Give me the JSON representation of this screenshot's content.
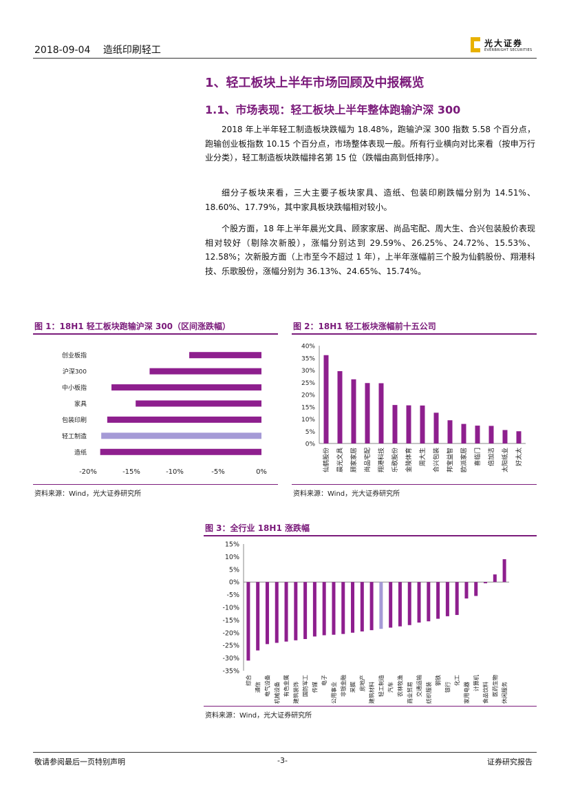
{
  "header": {
    "date": "2018-09-04",
    "sector": "造纸印刷轻工"
  },
  "logo": {
    "cn": "光大证券",
    "en": "EVERBRIGHT SECURITIES"
  },
  "section_title": "1、轻工板块上半年市场回顾及中报概览",
  "subsection_title": "1.1、市场表现：轻工板块上半年整体跑输沪深 300",
  "paragraphs": [
    "2018 年上半年轻工制造板块跌幅为 18.48%，跑输沪深 300 指数 5.58 个百分点，跑输创业板指数 10.15 个百分点，市场整体表现一般。所有行业横向对比来看（按申万行业分类），轻工制造板块跌幅排名第 15 位（跌幅由高到低排序）。",
    "细分子板块来看，三大主要子板块家具、造纸、包装印刷跌幅分别为 14.51%、18.60%、17.79%，其中家具板块跌幅相对较小。",
    "个股方面，18 年上半年晨光文具、顾家家居、尚品宅配、周大生、合兴包装股价表现相对较好（剔除次新股），涨幅分别达到 29.59%、26.25%、24.72%、15.53%、12.58%；次新股方面（上市至今不超过 1 年），上半年涨幅前三个股为仙鹤股份、翔港科技、乐歌股份，涨幅分别为 36.13%、24.65%、15.74%。"
  ],
  "figures": {
    "fig1": {
      "title": "图 1：18H1 轻工板块跑输沪深 300（区间涨跌幅）",
      "source": "资料来源：Wind，光大证券研究所"
    },
    "fig2": {
      "title": "图 2：18H1 轻工板块涨幅前十五公司",
      "source": "资料来源：Wind，光大证券研究所"
    },
    "fig3": {
      "title": "图 3：全行业 18H1 涨跌幅",
      "source": "资料来源：Wind，光大证券研究所"
    }
  },
  "footer": {
    "left": "敬请参阅最后一页特别声明",
    "page": "-3-",
    "right": "证券研究报告"
  },
  "colors": {
    "bar": "#8e1f8e",
    "highlight": "#a59ad6",
    "accent": "#7a1a7a"
  },
  "chart_data": [
    {
      "type": "bar",
      "orientation": "horizontal",
      "categories": [
        "创业板指",
        "沪深300",
        "中小板指",
        "家具",
        "包装印刷",
        "轻工制造",
        "造纸"
      ],
      "values": [
        -8.33,
        -12.9,
        -17.3,
        -14.51,
        -17.79,
        -18.48,
        -18.6
      ],
      "highlight": "轻工制造",
      "xlim": [
        -20,
        0
      ],
      "xticks": [
        "-20%",
        "-15%",
        "-10%",
        "-5%",
        "0%"
      ]
    },
    {
      "type": "bar",
      "categories": [
        "仙鹤股份",
        "晨光文具",
        "顾家家居",
        "尚品宅配",
        "翔港科技",
        "乐歌股份",
        "金陵体育",
        "周大生",
        "合兴包装",
        "邦宝益智",
        "欧派家居",
        "喜临门",
        "倍加洁",
        "太阳纸业",
        "好太太"
      ],
      "values": [
        36.13,
        29.59,
        26.25,
        24.72,
        24.65,
        15.74,
        15.6,
        15.53,
        12.58,
        9.5,
        8.0,
        7.3,
        7.2,
        5.5,
        5.0
      ],
      "ylim": [
        0,
        40
      ],
      "yticks": [
        "40%",
        "35%",
        "30%",
        "25%",
        "20%",
        "15%",
        "10%",
        "5%",
        "0%"
      ]
    },
    {
      "type": "bar",
      "categories": [
        "综合",
        "通信",
        "电气设备",
        "机械设备",
        "有色金属",
        "建筑装饰",
        "国防军工",
        "传媒",
        "电子",
        "公用事业",
        "非银金融",
        "采掘",
        "房地产",
        "建筑材料",
        "轻工制造",
        "汽车",
        "农林牧渔",
        "商业贸易",
        "交通运输",
        "纺织服装",
        "钢铁",
        "银行",
        "化工",
        "家用电器",
        "计算机",
        "食品饮料",
        "医药生物",
        "休闲服务"
      ],
      "values": [
        -31.0,
        -27.0,
        -24.5,
        -24.0,
        -23.5,
        -23.0,
        -22.5,
        -21.5,
        -21.0,
        -20.8,
        -20.5,
        -20.0,
        -19.5,
        -19.0,
        -18.48,
        -18.0,
        -17.5,
        -17.0,
        -16.0,
        -15.5,
        -14.5,
        -13.5,
        -13.0,
        -6.5,
        -5.5,
        -0.5,
        3.0,
        9.0
      ],
      "highlight": "轻工制造",
      "ylim": [
        -35,
        15
      ],
      "yticks": [
        "15%",
        "10%",
        "5%",
        "0%",
        "-5%",
        "-10%",
        "-15%",
        "-20%",
        "-25%",
        "-30%",
        "-35%"
      ]
    }
  ]
}
